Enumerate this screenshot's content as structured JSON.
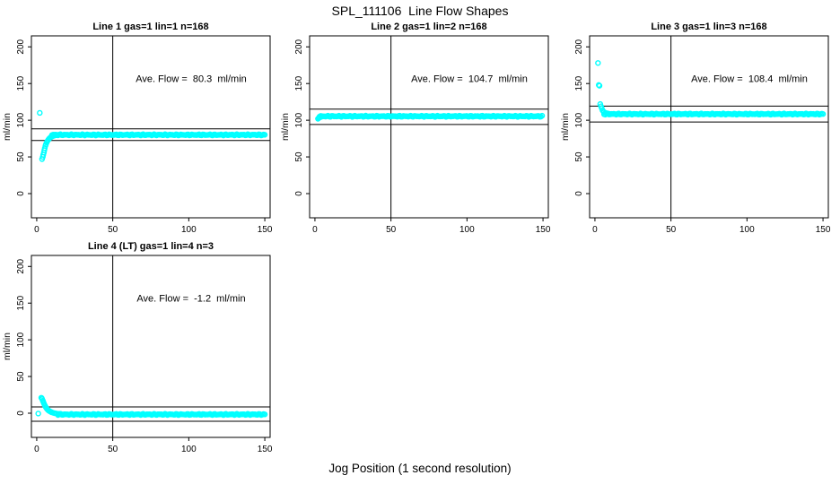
{
  "page": {
    "title": "SPL_111106  Line Flow Shapes",
    "xlabel": "Jog Position (1 second resolution)",
    "background": "#ffffff",
    "axis_color": "#000000",
    "point_color": "#00ffff",
    "marker": "open-circle"
  },
  "chart_data": [
    {
      "type": "scatter",
      "title": "Line 1 gas=1 lin=1 n=168",
      "annotation": "Ave. Flow =  80.3  ml/min",
      "ave_flow": 80.3,
      "ylabel": "ml/min",
      "xticks": [
        0,
        50,
        100,
        150
      ],
      "yticks": [
        0,
        50,
        100,
        150,
        200
      ],
      "xlim": [
        -3.5,
        153.5
      ],
      "ylim": [
        -33,
        215
      ],
      "grid": false,
      "legend": "none",
      "vline_x": 50,
      "hlines": [
        88.3,
        72.3
      ],
      "points": [
        [
          2,
          110
        ],
        [
          3.5,
          47
        ],
        [
          4,
          50
        ],
        [
          4.3,
          53
        ],
        [
          4.7,
          56
        ],
        [
          5,
          59
        ],
        [
          5.3,
          62
        ],
        [
          5.7,
          65
        ],
        [
          6,
          67
        ],
        [
          6.5,
          69.5
        ],
        [
          7,
          71.5
        ],
        [
          7.5,
          73
        ],
        [
          8,
          74.5
        ],
        [
          8.5,
          75.5
        ],
        [
          9,
          76.5
        ],
        [
          9.5,
          77.2
        ],
        [
          10,
          77.8
        ],
        [
          11,
          78.6
        ],
        [
          12,
          79.2
        ],
        [
          13,
          79.6
        ],
        [
          14,
          79.9
        ]
      ],
      "band": {
        "x_from": 10,
        "x_to": 150,
        "y": 80.1,
        "step": 0.8,
        "jitter": 0.9
      }
    },
    {
      "type": "scatter",
      "title": "Line 2 gas=1 lin=2 n=168",
      "annotation": "Ave. Flow =  104.7  ml/min",
      "ave_flow": 104.7,
      "ylabel": "ml/min",
      "xticks": [
        0,
        50,
        100,
        150
      ],
      "yticks": [
        0,
        50,
        100,
        150,
        200
      ],
      "xlim": [
        -3.5,
        153.5
      ],
      "ylim": [
        -33,
        215
      ],
      "grid": false,
      "legend": "none",
      "vline_x": 50,
      "hlines": [
        115.2,
        94.2
      ],
      "points": [
        [
          2,
          102
        ],
        [
          2.5,
          103
        ],
        [
          3,
          103.8
        ],
        [
          4,
          104.5
        ]
      ],
      "band": {
        "x_from": 3,
        "x_to": 150,
        "y": 105.4,
        "step": 0.8,
        "jitter": 0.9
      }
    },
    {
      "type": "scatter",
      "title": "Line 3 gas=1 lin=3 n=168",
      "annotation": "Ave. Flow =  108.4  ml/min",
      "ave_flow": 108.4,
      "ylabel": "ml/min",
      "xticks": [
        0,
        50,
        100,
        150
      ],
      "yticks": [
        0,
        50,
        100,
        150,
        200
      ],
      "xlim": [
        -3.5,
        153.5
      ],
      "ylim": [
        -33,
        215
      ],
      "grid": false,
      "legend": "none",
      "vline_x": 50,
      "hlines": [
        119.2,
        97.6
      ],
      "points": [
        [
          2,
          178
        ],
        [
          2.5,
          148
        ],
        [
          3,
          147
        ],
        [
          3.5,
          122
        ],
        [
          4,
          119
        ],
        [
          4.5,
          116
        ],
        [
          5,
          113.5
        ],
        [
          5.5,
          112
        ],
        [
          6,
          111
        ],
        [
          7,
          110
        ],
        [
          8,
          109.4
        ],
        [
          9,
          109
        ]
      ],
      "band": {
        "x_from": 6,
        "x_to": 150,
        "y": 108.4,
        "step": 0.8,
        "jitter": 0.9
      }
    },
    {
      "type": "scatter",
      "title": "Line 4 (LT) gas=1 lin=4 n=3",
      "annotation": "Ave. Flow =  -1.2  ml/min",
      "ave_flow": -1.2,
      "ylabel": "ml/min",
      "xticks": [
        0,
        50,
        100,
        150
      ],
      "yticks": [
        0,
        50,
        100,
        150,
        200
      ],
      "xlim": [
        -3.5,
        153.5
      ],
      "ylim": [
        -33,
        215
      ],
      "grid": false,
      "legend": "none",
      "vline_x": 50,
      "hlines": [
        8.5,
        -11
      ],
      "points": [
        [
          1,
          -0.5
        ],
        [
          3,
          21
        ],
        [
          3.3,
          20.5
        ],
        [
          3.6,
          19
        ],
        [
          4,
          17
        ],
        [
          4.4,
          15
        ],
        [
          4.8,
          13
        ],
        [
          5.2,
          11
        ],
        [
          5.6,
          9.5
        ],
        [
          6,
          8
        ],
        [
          6.5,
          6.5
        ],
        [
          7,
          5.2
        ],
        [
          7.5,
          4.2
        ],
        [
          8,
          3.4
        ],
        [
          8.5,
          2.7
        ],
        [
          9,
          2.1
        ],
        [
          9.5,
          1.6
        ],
        [
          10,
          1.1
        ],
        [
          11,
          0.4
        ],
        [
          12,
          -0.1
        ],
        [
          13,
          -0.5
        ],
        [
          14,
          -0.8
        ],
        [
          15,
          -1
        ],
        [
          16,
          -1.2
        ]
      ],
      "band": {
        "x_from": 14,
        "x_to": 150,
        "y": -1.7,
        "step": 0.8,
        "jitter": 0.9
      }
    }
  ]
}
